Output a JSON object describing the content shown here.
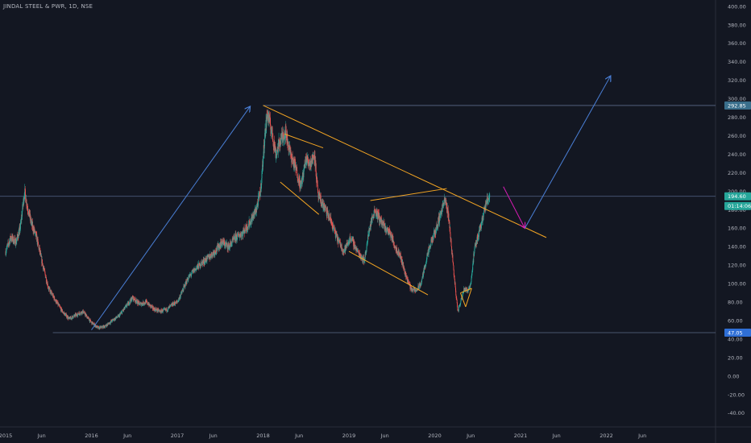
{
  "chart_title": "JINDAL STEEL & PWR, 1D, NSE",
  "colors": {
    "background": "#131722",
    "up": "#26a69a",
    "down": "#ef5350",
    "trendline": "#f5a623",
    "arrow_blue": "#4a7fd6",
    "arrow_magenta": "#d81bb5",
    "hline": "#5b6b8a",
    "tag_high": "#3a6f8c",
    "tag_low": "#2f6fd6",
    "tag_price": "#26a69a",
    "axis_text": "#b2b5be"
  },
  "chart_data": {
    "type": "candlestick",
    "title": "JINDAL STEEL & PWR, 1D, NSE",
    "xlabel": "",
    "ylabel": "",
    "ylim": [
      -50,
      400
    ],
    "y_ticks": [
      "400.00",
      "380.00",
      "360.00",
      "340.00",
      "320.00",
      "300.00",
      "280.00",
      "260.00",
      "240.00",
      "220.00",
      "200.00",
      "180.00",
      "160.00",
      "140.00",
      "120.00",
      "100.00",
      "80.00",
      "60.00",
      "40.00",
      "20.00",
      "0.00",
      "-20.00",
      "-40.00"
    ],
    "x_ticks": [
      "2015",
      "Jun",
      "2016",
      "Jun",
      "2017",
      "Jun",
      "2018",
      "Jun",
      "2019",
      "Jun",
      "2020",
      "Jun",
      "2021",
      "Jun",
      "2022",
      "Jun"
    ],
    "x_tick_times": [
      2015.0,
      2015.42,
      2016.0,
      2016.42,
      2017.0,
      2017.42,
      2018.0,
      2018.42,
      2019.0,
      2019.42,
      2020.0,
      2020.42,
      2021.0,
      2021.42,
      2022.0,
      2022.42
    ],
    "price_path": [
      [
        2015.0,
        135
      ],
      [
        2015.06,
        150
      ],
      [
        2015.12,
        145
      ],
      [
        2015.17,
        160
      ],
      [
        2015.22,
        200
      ],
      [
        2015.25,
        185
      ],
      [
        2015.3,
        165
      ],
      [
        2015.36,
        150
      ],
      [
        2015.42,
        125
      ],
      [
        2015.5,
        95
      ],
      [
        2015.58,
        82
      ],
      [
        2015.66,
        70
      ],
      [
        2015.74,
        62
      ],
      [
        2015.82,
        66
      ],
      [
        2015.9,
        70
      ],
      [
        2016.0,
        58
      ],
      [
        2016.08,
        52
      ],
      [
        2016.16,
        54
      ],
      [
        2016.24,
        60
      ],
      [
        2016.32,
        65
      ],
      [
        2016.4,
        75
      ],
      [
        2016.48,
        85
      ],
      [
        2016.56,
        78
      ],
      [
        2016.64,
        80
      ],
      [
        2016.72,
        73
      ],
      [
        2016.8,
        70
      ],
      [
        2016.88,
        72
      ],
      [
        2016.95,
        78
      ],
      [
        2017.0,
        80
      ],
      [
        2017.05,
        90
      ],
      [
        2017.12,
        105
      ],
      [
        2017.2,
        115
      ],
      [
        2017.28,
        122
      ],
      [
        2017.36,
        128
      ],
      [
        2017.44,
        135
      ],
      [
        2017.52,
        145
      ],
      [
        2017.6,
        140
      ],
      [
        2017.68,
        150
      ],
      [
        2017.76,
        155
      ],
      [
        2017.84,
        165
      ],
      [
        2017.92,
        180
      ],
      [
        2017.97,
        200
      ],
      [
        2018.02,
        260
      ],
      [
        2018.05,
        285
      ],
      [
        2018.1,
        265
      ],
      [
        2018.15,
        240
      ],
      [
        2018.2,
        255
      ],
      [
        2018.26,
        265
      ],
      [
        2018.32,
        240
      ],
      [
        2018.38,
        225
      ],
      [
        2018.44,
        205
      ],
      [
        2018.5,
        235
      ],
      [
        2018.55,
        230
      ],
      [
        2018.6,
        240
      ],
      [
        2018.64,
        195
      ],
      [
        2018.7,
        185
      ],
      [
        2018.78,
        170
      ],
      [
        2018.86,
        150
      ],
      [
        2018.94,
        135
      ],
      [
        2019.02,
        150
      ],
      [
        2019.1,
        135
      ],
      [
        2019.18,
        125
      ],
      [
        2019.24,
        160
      ],
      [
        2019.3,
        180
      ],
      [
        2019.36,
        170
      ],
      [
        2019.42,
        160
      ],
      [
        2019.48,
        155
      ],
      [
        2019.54,
        140
      ],
      [
        2019.6,
        130
      ],
      [
        2019.66,
        110
      ],
      [
        2019.72,
        95
      ],
      [
        2019.78,
        92
      ],
      [
        2019.84,
        100
      ],
      [
        2019.9,
        125
      ],
      [
        2019.96,
        145
      ],
      [
        2020.02,
        160
      ],
      [
        2020.08,
        180
      ],
      [
        2020.12,
        190
      ],
      [
        2020.16,
        175
      ],
      [
        2020.2,
        135
      ],
      [
        2020.24,
        95
      ],
      [
        2020.27,
        70
      ],
      [
        2020.3,
        80
      ],
      [
        2020.34,
        95
      ],
      [
        2020.38,
        92
      ],
      [
        2020.42,
        100
      ],
      [
        2020.46,
        135
      ],
      [
        2020.5,
        150
      ],
      [
        2020.54,
        165
      ],
      [
        2020.58,
        180
      ],
      [
        2020.62,
        192
      ],
      [
        2020.64,
        195
      ]
    ],
    "horizontal_levels": [
      {
        "label": "292.85",
        "value": 292.85,
        "tag": "high"
      },
      {
        "label": "194.60",
        "value": 194.6,
        "tag": "price"
      },
      {
        "label": "47.05",
        "value": 47.05,
        "tag": "low"
      }
    ],
    "countdown_label": "01:14:06",
    "drawings": [
      {
        "kind": "trendline",
        "color": "trendline",
        "points": [
          [
            2018.0,
            293
          ],
          [
            2021.3,
            150
          ]
        ]
      },
      {
        "kind": "trendline",
        "color": "trendline",
        "points": [
          [
            2018.25,
            262
          ],
          [
            2018.7,
            247
          ]
        ]
      },
      {
        "kind": "trendline",
        "color": "trendline",
        "points": [
          [
            2018.2,
            210
          ],
          [
            2018.65,
            175
          ]
        ]
      },
      {
        "kind": "trendline",
        "color": "trendline",
        "points": [
          [
            2019.25,
            190
          ],
          [
            2020.14,
            203
          ]
        ]
      },
      {
        "kind": "trendline",
        "color": "trendline",
        "points": [
          [
            2019.0,
            135
          ],
          [
            2019.92,
            88
          ]
        ]
      },
      {
        "kind": "trendline",
        "color": "trendline",
        "points": [
          [
            2020.3,
            90
          ],
          [
            2020.36,
            75
          ]
        ]
      },
      {
        "kind": "trendline",
        "color": "trendline",
        "points": [
          [
            2020.36,
            75
          ],
          [
            2020.43,
            95
          ]
        ]
      },
      {
        "kind": "trendline",
        "color": "trendline",
        "points": [
          [
            2020.43,
            95
          ],
          [
            2020.3,
            90
          ]
        ]
      },
      {
        "kind": "arrow",
        "color": "arrow_blue",
        "points": [
          [
            2016.0,
            50
          ],
          [
            2017.85,
            292
          ]
        ]
      },
      {
        "kind": "arrow",
        "color": "arrow_magenta",
        "points": [
          [
            2020.8,
            205
          ],
          [
            2021.05,
            160
          ]
        ]
      },
      {
        "kind": "arrow",
        "color": "arrow_blue",
        "points": [
          [
            2021.05,
            160
          ],
          [
            2022.05,
            325
          ]
        ]
      }
    ]
  }
}
